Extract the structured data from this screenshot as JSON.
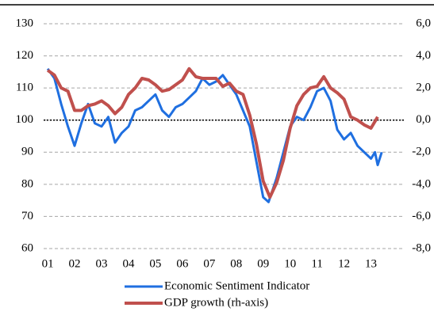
{
  "chart_data": {
    "type": "line",
    "series": [
      {
        "name": "Economic Sentiment Indicator",
        "color": "#1f6fe0",
        "axis": "y",
        "x": [
          1.0,
          1.25,
          1.5,
          1.75,
          2.0,
          2.25,
          2.5,
          2.75,
          3.0,
          3.25,
          3.5,
          3.75,
          4.0,
          4.25,
          4.5,
          4.75,
          5.0,
          5.25,
          5.5,
          5.75,
          6.0,
          6.25,
          6.5,
          6.75,
          7.0,
          7.25,
          7.5,
          7.75,
          8.0,
          8.25,
          8.5,
          8.75,
          9.0,
          9.2,
          9.5,
          9.75,
          10.0,
          10.25,
          10.5,
          10.75,
          11.0,
          11.25,
          11.5,
          11.75,
          12.0,
          12.25,
          12.5,
          12.75,
          13.0,
          13.15,
          13.25,
          13.4
        ],
        "values": [
          116,
          113,
          105,
          98,
          92,
          99,
          105,
          99,
          98,
          101,
          93,
          96,
          98,
          103,
          104,
          106,
          108,
          103,
          101,
          104,
          105,
          107,
          109,
          113,
          111,
          112,
          114,
          111,
          108,
          103,
          98,
          87,
          76,
          74.5,
          82,
          90,
          98,
          101,
          100,
          104,
          109,
          110,
          106,
          97,
          94,
          96,
          92,
          90,
          88,
          90,
          86,
          90
        ]
      },
      {
        "name": "GDP growth (rh-axis)",
        "color": "#c0504d",
        "axis": "y2",
        "x": [
          1.0,
          1.25,
          1.5,
          1.75,
          2.0,
          2.25,
          2.5,
          2.75,
          3.0,
          3.25,
          3.5,
          3.75,
          4.0,
          4.25,
          4.5,
          4.75,
          5.0,
          5.25,
          5.5,
          5.75,
          6.0,
          6.25,
          6.5,
          6.75,
          7.0,
          7.25,
          7.5,
          7.75,
          8.0,
          8.25,
          8.5,
          8.75,
          9.0,
          9.25,
          9.5,
          9.75,
          10.0,
          10.25,
          10.5,
          10.75,
          11.0,
          11.25,
          11.5,
          11.75,
          12.0,
          12.25,
          12.5,
          12.75,
          13.0,
          13.25
        ],
        "values": [
          3.1,
          2.8,
          2.0,
          1.8,
          0.6,
          0.6,
          0.9,
          1.0,
          1.2,
          0.9,
          0.4,
          0.8,
          1.6,
          2.0,
          2.6,
          2.5,
          2.2,
          1.8,
          1.9,
          2.2,
          2.5,
          3.2,
          2.7,
          2.6,
          2.6,
          2.6,
          2.1,
          2.3,
          1.8,
          1.6,
          0.3,
          -1.5,
          -3.8,
          -4.8,
          -3.9,
          -2.5,
          -0.5,
          0.9,
          1.6,
          2.0,
          2.1,
          2.7,
          2.0,
          1.7,
          1.3,
          0.2,
          0.0,
          -0.3,
          -0.5,
          0.2
        ]
      }
    ],
    "xlim": [
      0.85,
      14.25
    ],
    "xticks": [
      {
        "value": 1,
        "label": "01"
      },
      {
        "value": 2,
        "label": "02"
      },
      {
        "value": 3,
        "label": "03"
      },
      {
        "value": 4,
        "label": "04"
      },
      {
        "value": 5,
        "label": "05"
      },
      {
        "value": 6,
        "label": "06"
      },
      {
        "value": 7,
        "label": "07"
      },
      {
        "value": 8,
        "label": "08"
      },
      {
        "value": 9,
        "label": "09"
      },
      {
        "value": 10,
        "label": "10"
      },
      {
        "value": 11,
        "label": "11"
      },
      {
        "value": 12,
        "label": "12"
      },
      {
        "value": 13,
        "label": "13"
      }
    ],
    "ylim": [
      60,
      130
    ],
    "yticks": [
      60,
      70,
      80,
      90,
      100,
      110,
      120,
      130
    ],
    "y2lim": [
      -8,
      6
    ],
    "y2ticks": [
      {
        "value": -8,
        "label": "-8,0"
      },
      {
        "value": -6,
        "label": "-6,0"
      },
      {
        "value": -4,
        "label": "-4,0"
      },
      {
        "value": -2,
        "label": "-2,0"
      },
      {
        "value": 0,
        "label": "0,0"
      },
      {
        "value": 2,
        "label": "2,0"
      },
      {
        "value": 4,
        "label": "4,0"
      },
      {
        "value": 6,
        "label": "6,0"
      }
    ],
    "grid": true,
    "legend": "bottom"
  }
}
